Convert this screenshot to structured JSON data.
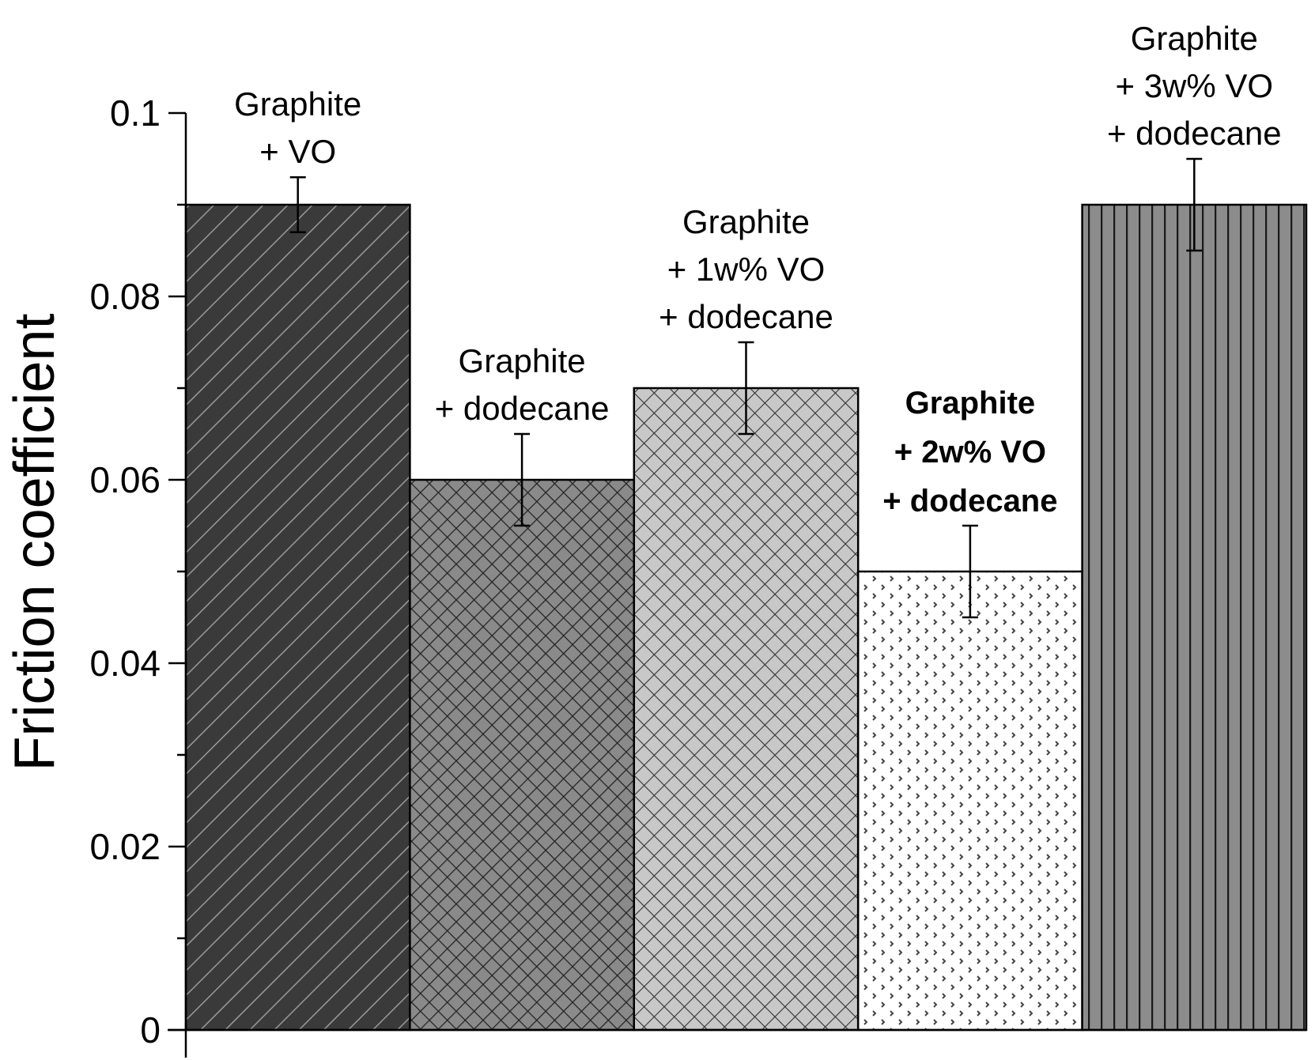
{
  "chart_data": {
    "type": "bar",
    "title": "",
    "xlabel": "",
    "ylabel": "Friction coefficient",
    "ylim": [
      0,
      0.1
    ],
    "yticks": [
      "0",
      "0.02",
      "0.04",
      "0.06",
      "0.08",
      "0.1"
    ],
    "grid": false,
    "legend": "none",
    "categories": [
      "Graphite + VO",
      "Graphite + dodecane",
      "Graphite + 1w% VO + dodecane",
      "Graphite + 2w% VO + dodecane",
      "Graphite + 3w% VO + dodecane"
    ],
    "values": [
      0.09,
      0.06,
      0.07,
      0.05,
      0.09
    ],
    "errors": [
      0.003,
      0.005,
      0.005,
      0.005,
      0.005
    ],
    "bar_labels": [
      {
        "lines": [
          "Graphite",
          "+ VO"
        ],
        "bold": false
      },
      {
        "lines": [
          "Graphite",
          "+ dodecane"
        ],
        "bold": false
      },
      {
        "lines": [
          "Graphite",
          "+ 1w% VO",
          "+ dodecane"
        ],
        "bold": false
      },
      {
        "lines": [
          "Graphite",
          "+ 2w% VO",
          "+ dodecane"
        ],
        "bold": true
      },
      {
        "lines": [
          "Graphite",
          "+ 3w% VO",
          "+ dodecane"
        ],
        "bold": false
      }
    ],
    "patterns": [
      "diagonal-hatch",
      "crosshatch",
      "diamond-crosshatch",
      "dots",
      "vertical-stripes"
    ],
    "colors": {
      "bar1": "#3a3a3a",
      "bar2": "#7a7a7a",
      "bar3": "#bdbdbd",
      "bar4": "#ffffff",
      "bar5": "#8c8c8c",
      "axis": "#000000"
    }
  }
}
